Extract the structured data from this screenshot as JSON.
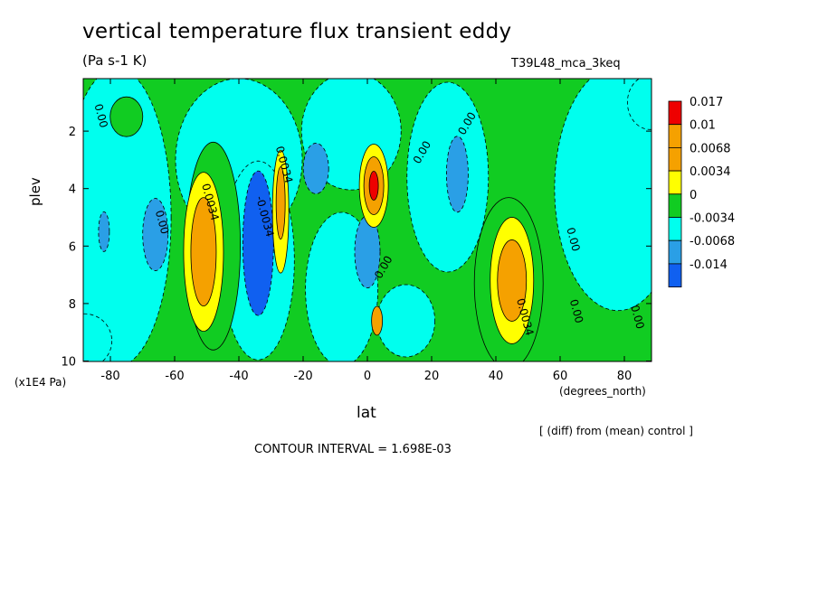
{
  "header": {
    "title": "vertical temperature flux transient eddy",
    "units": "(Pa s-1 K)",
    "run": "T39L48_mca_3keq"
  },
  "footer": {
    "contour_interval": "CONTOUR INTERVAL = 1.698E-03",
    "diff_note": "[ (diff) from (mean) control ]"
  },
  "chart_data": {
    "type": "heatmap",
    "title": "vertical temperature flux transient eddy",
    "xlabel": "lat",
    "ylabel": "plev",
    "x_unit": "(degrees_north)",
    "y_unit": "(x1E4 Pa)",
    "xlim": [
      -90,
      90
    ],
    "ylim": [
      10,
      0.2
    ],
    "x_ticks": [
      -80,
      -60,
      -40,
      -20,
      0,
      20,
      40,
      60,
      80
    ],
    "y_ticks": [
      2,
      4,
      6,
      8,
      10
    ],
    "x_tick_labels": [
      "-80",
      "-60",
      "-40",
      "-20",
      "0",
      "20",
      "40",
      "60",
      "80"
    ],
    "y_tick_labels": [
      "2",
      "4",
      "6",
      "8",
      "10"
    ],
    "legend": {
      "placement": "right",
      "levels": [
        {
          "label": "0.017",
          "color": "#ee0000"
        },
        {
          "label": "0.01",
          "color": "#f5a100"
        },
        {
          "label": "0.0068",
          "color": "#f5a100"
        },
        {
          "label": "0.0034",
          "color": "#ffff00"
        },
        {
          "label": "0",
          "color": "#11cc22"
        },
        {
          "label": "-0.0034",
          "color": "#00ffee"
        },
        {
          "label": "-0.0068",
          "color": "#2a9fe6"
        },
        {
          "label": "-0.014",
          "color": "#1060f0"
        }
      ]
    },
    "contour_labels": [
      {
        "text": "0.00",
        "lat": -84,
        "p": 1.5
      },
      {
        "text": "0.00",
        "lat": -65,
        "p": 5.2
      },
      {
        "text": "0.0034",
        "lat": -50,
        "p": 4.5
      },
      {
        "text": "-0.0034",
        "lat": -33,
        "p": 5.0
      },
      {
        "text": "0.0034",
        "lat": -27,
        "p": 3.2
      },
      {
        "text": "0.00",
        "lat": 6,
        "p": 6.8
      },
      {
        "text": "0.00",
        "lat": 18,
        "p": 2.8
      },
      {
        "text": "0.00",
        "lat": 32,
        "p": 1.8
      },
      {
        "text": "0.0034",
        "lat": 48,
        "p": 8.5
      },
      {
        "text": "0.00",
        "lat": 63,
        "p": 5.8
      },
      {
        "text": "0.00",
        "lat": 64,
        "p": 8.3
      },
      {
        "text": "0.00",
        "lat": 83,
        "p": 8.5
      }
    ],
    "features": [
      {
        "kind": "positive",
        "lat": -51,
        "p": 6.2,
        "peak": 0.0068
      },
      {
        "kind": "negative",
        "lat": -34,
        "p": 5.9,
        "peak": -0.014
      },
      {
        "kind": "positive",
        "lat": -27,
        "p": 4.8,
        "peak": 0.0068
      },
      {
        "kind": "negative",
        "lat": -66,
        "p": 5.6,
        "peak": -0.0068
      },
      {
        "kind": "negative",
        "lat": -16,
        "p": 3.3,
        "peak": -0.0068
      },
      {
        "kind": "positive",
        "lat": 2,
        "p": 3.9,
        "peak": 0.017
      },
      {
        "kind": "negative",
        "lat": 0,
        "p": 6.2,
        "peak": -0.0068
      },
      {
        "kind": "negative",
        "lat": 28,
        "p": 3.5,
        "peak": -0.0068
      },
      {
        "kind": "positive",
        "lat": 45,
        "p": 7.2,
        "peak": 0.0068
      },
      {
        "kind": "negative",
        "lat": -82,
        "p": 5.5,
        "peak": -0.0068
      }
    ],
    "grid": false
  }
}
